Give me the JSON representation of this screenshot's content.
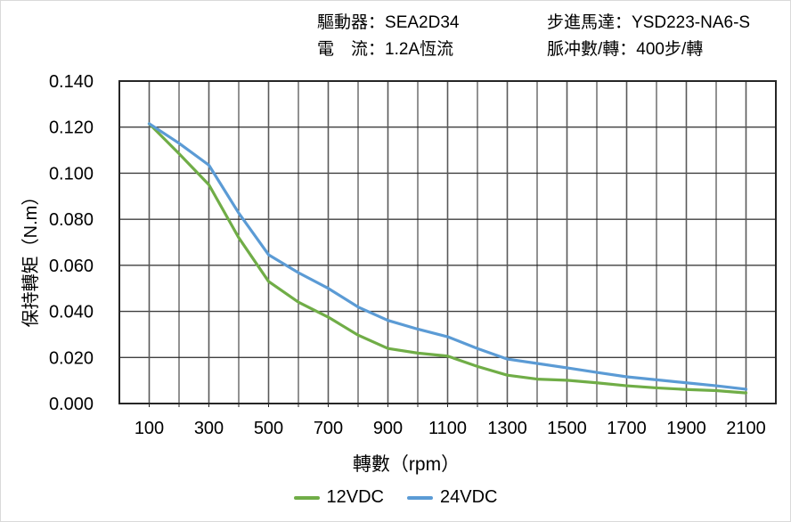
{
  "header": {
    "driver_label": "驅動器：",
    "driver_value": "SEA2D34",
    "current_label": "電　流：",
    "current_value": "1.2A恆流",
    "motor_label": "步進馬達：",
    "motor_value": "YSD223-NA6-S",
    "pulses_label": "脈冲數/轉：",
    "pulses_value": "400步/轉"
  },
  "chart_data": {
    "type": "line",
    "title": "",
    "xlabel": "轉數（rpm）",
    "ylabel": "保持轉矩（N.m）",
    "xlim": [
      0,
      2200
    ],
    "ylim": [
      0,
      0.14
    ],
    "y_tick_step": 0.02,
    "y_tick_format_decimals": 3,
    "x_gridline_step": 100,
    "x_label_values": [
      100,
      300,
      500,
      700,
      900,
      1100,
      1300,
      1500,
      1700,
      1900,
      2100
    ],
    "grid": true,
    "legend_position": "bottom",
    "x": [
      100,
      200,
      300,
      400,
      500,
      600,
      700,
      800,
      900,
      1000,
      1100,
      1200,
      1300,
      1400,
      1500,
      1600,
      1700,
      1800,
      1900,
      2000,
      2100
    ],
    "series": [
      {
        "name": "12VDC",
        "color": "#70AD47",
        "values": [
          0.1215,
          0.1085,
          0.095,
          0.072,
          0.053,
          0.044,
          0.0375,
          0.0297,
          0.0239,
          0.0219,
          0.0206,
          0.0161,
          0.0123,
          0.0106,
          0.0101,
          0.009,
          0.0077,
          0.0068,
          0.0061,
          0.0056,
          0.0046
        ]
      },
      {
        "name": "24VDC",
        "color": "#5B9BD5",
        "values": [
          0.1215,
          0.113,
          0.1035,
          0.0827,
          0.0646,
          0.0568,
          0.05,
          0.0419,
          0.0361,
          0.0323,
          0.029,
          0.0239,
          0.0193,
          0.0174,
          0.0155,
          0.0135,
          0.0116,
          0.0103,
          0.009,
          0.0077,
          0.0062
        ]
      }
    ],
    "colors": {
      "gridline_minor": "#262626",
      "gridline_major": "#595959",
      "plot_border": "#262626",
      "text": "#000000"
    }
  }
}
